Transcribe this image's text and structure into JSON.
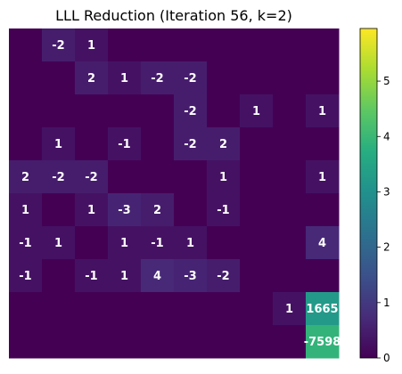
{
  "chart_data": {
    "type": "heatmap",
    "title": "LLL Reduction (Iteration 56, k=2)",
    "xlabel": "",
    "ylabel": "",
    "rows": 10,
    "cols": 10,
    "color_scale": {
      "colormap": "viridis",
      "min": 0,
      "max": 5.95,
      "ticks": [
        0,
        1,
        2,
        3,
        4,
        5
      ],
      "note": "color encodes magnitude of log10(1+|value|) per cell"
    },
    "matrix": [
      [
        0,
        -2,
        1,
        0,
        0,
        0,
        0,
        0,
        0,
        0
      ],
      [
        0,
        0,
        2,
        1,
        -2,
        -2,
        0,
        0,
        0,
        0
      ],
      [
        0,
        0,
        0,
        0,
        0,
        -2,
        0,
        1,
        0,
        1
      ],
      [
        0,
        1,
        0,
        -1,
        0,
        -2,
        2,
        0,
        0,
        0
      ],
      [
        2,
        -2,
        -2,
        0,
        0,
        0,
        1,
        0,
        0,
        1
      ],
      [
        1,
        0,
        1,
        -3,
        2,
        0,
        -1,
        0,
        0,
        0
      ],
      [
        -1,
        1,
        0,
        1,
        -1,
        1,
        0,
        0,
        0,
        4
      ],
      [
        -1,
        0,
        -1,
        1,
        4,
        -3,
        -2,
        0,
        0,
        0
      ],
      [
        0,
        0,
        0,
        0,
        0,
        0,
        0,
        0,
        1,
        1665
      ],
      [
        0,
        0,
        0,
        0,
        0,
        0,
        0,
        0,
        0,
        -7598
      ]
    ]
  }
}
